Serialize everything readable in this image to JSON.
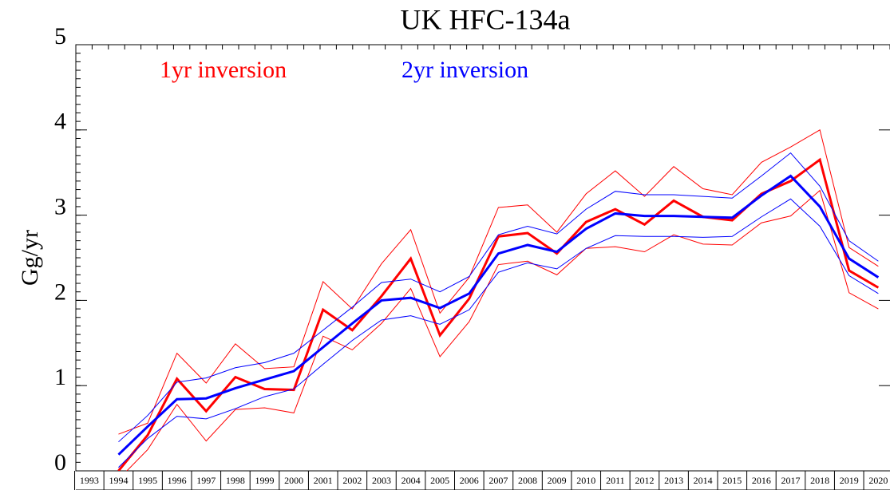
{
  "chart_data": {
    "type": "line",
    "title": "UK HFC-134a",
    "y_label": "Gg/yr",
    "x": [
      1994,
      1995,
      1996,
      1997,
      1998,
      1999,
      2000,
      2001,
      2002,
      2003,
      2004,
      2005,
      2006,
      2007,
      2008,
      2009,
      2010,
      2011,
      2012,
      2013,
      2014,
      2015,
      2016,
      2017,
      2018,
      2019,
      2020
    ],
    "xlim": [
      1992.54,
      2020.4
    ],
    "xticks": [
      1993,
      1994,
      1995,
      1996,
      1997,
      1998,
      1999,
      2000,
      2001,
      2002,
      2003,
      2004,
      2005,
      2006,
      2007,
      2008,
      2009,
      2010,
      2011,
      2012,
      2013,
      2014,
      2015,
      2016,
      2017,
      2018,
      2019,
      2020
    ],
    "ylim": [
      0,
      5
    ],
    "yticks": [
      0,
      1,
      2,
      3,
      4,
      5
    ],
    "series": [
      {
        "name": "1yr inversion",
        "color": "#ff0000",
        "values": [
          0,
          0.42,
          1.08,
          0.7,
          1.1,
          0.96,
          0.95,
          1.89,
          1.65,
          2.05,
          2.49,
          1.59,
          2.02,
          2.75,
          2.79,
          2.55,
          2.92,
          3.07,
          2.89,
          3.17,
          2.98,
          2.94,
          3.25,
          3.4,
          3.65,
          2.35,
          2.15
        ],
        "upper": [
          0.43,
          0.56,
          1.38,
          1.03,
          1.49,
          1.2,
          1.22,
          2.22,
          1.9,
          2.43,
          2.83,
          1.85,
          2.27,
          3.09,
          3.12,
          2.8,
          3.25,
          3.52,
          3.22,
          3.57,
          3.31,
          3.24,
          3.62,
          3.8,
          4.0,
          2.62,
          2.4
        ],
        "lower": [
          -0.1,
          0.25,
          0.78,
          0.35,
          0.72,
          0.74,
          0.68,
          1.58,
          1.42,
          1.73,
          2.14,
          1.34,
          1.75,
          2.42,
          2.46,
          2.3,
          2.61,
          2.63,
          2.57,
          2.77,
          2.66,
          2.65,
          2.91,
          2.99,
          3.29,
          2.09,
          1.9
        ]
      },
      {
        "name": "2yr inversion",
        "color": "#0000ff",
        "values": [
          0.19,
          0.52,
          0.84,
          0.85,
          0.97,
          1.07,
          1.17,
          1.45,
          1.73,
          2.0,
          2.03,
          1.91,
          2.08,
          2.55,
          2.65,
          2.57,
          2.84,
          3.02,
          2.99,
          2.99,
          2.98,
          2.97,
          3.23,
          3.46,
          3.1,
          2.49,
          2.27
        ],
        "upper": [
          0.34,
          0.65,
          1.04,
          1.09,
          1.21,
          1.27,
          1.38,
          1.65,
          1.92,
          2.21,
          2.25,
          2.1,
          2.28,
          2.77,
          2.87,
          2.78,
          3.07,
          3.28,
          3.24,
          3.24,
          3.22,
          3.2,
          3.46,
          3.73,
          3.34,
          2.7,
          2.46
        ],
        "lower": [
          0.04,
          0.38,
          0.64,
          0.61,
          0.73,
          0.87,
          0.96,
          1.25,
          1.53,
          1.77,
          1.82,
          1.72,
          1.89,
          2.33,
          2.44,
          2.37,
          2.61,
          2.76,
          2.75,
          2.75,
          2.74,
          2.75,
          2.98,
          3.19,
          2.87,
          2.29,
          2.08
        ]
      }
    ]
  }
}
